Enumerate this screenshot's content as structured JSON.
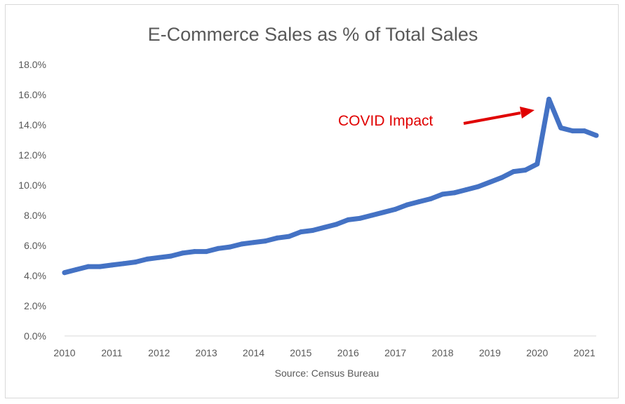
{
  "chart_data": {
    "type": "line",
    "title": "E-Commerce Sales as % of Total Sales",
    "xlabel": "Source: Census Bureau",
    "ylabel": "",
    "ylim": [
      0,
      18
    ],
    "y_ticks": [
      "0.0%",
      "2.0%",
      "4.0%",
      "6.0%",
      "8.0%",
      "10.0%",
      "12.0%",
      "14.0%",
      "16.0%",
      "18.0%"
    ],
    "x_ticks": [
      "2010",
      "2011",
      "2012",
      "2013",
      "2014",
      "2015",
      "2016",
      "2017",
      "2018",
      "2019",
      "2020",
      "2021"
    ],
    "grid": false,
    "legend": "none",
    "line_color": "#4472c4",
    "annotation": {
      "text": "COVID Impact",
      "color": "#e00000",
      "points_to": [
        "2020Q2",
        15.7
      ]
    },
    "series": [
      {
        "x": [
          "2010Q1",
          "2010Q2",
          "2010Q3",
          "2010Q4",
          "2011Q1",
          "2011Q2",
          "2011Q3",
          "2011Q4",
          "2012Q1",
          "2012Q2",
          "2012Q3",
          "2012Q4",
          "2013Q1",
          "2013Q2",
          "2013Q3",
          "2013Q4",
          "2014Q1",
          "2014Q2",
          "2014Q3",
          "2014Q4",
          "2015Q1",
          "2015Q2",
          "2015Q3",
          "2015Q4",
          "2016Q1",
          "2016Q2",
          "2016Q3",
          "2016Q4",
          "2017Q1",
          "2017Q2",
          "2017Q3",
          "2017Q4",
          "2018Q1",
          "2018Q2",
          "2018Q3",
          "2018Q4",
          "2019Q1",
          "2019Q2",
          "2019Q3",
          "2019Q4",
          "2020Q1",
          "2020Q2",
          "2020Q3",
          "2020Q4",
          "2021Q1",
          "2021Q2"
        ],
        "values": [
          4.2,
          4.4,
          4.6,
          4.6,
          4.7,
          4.8,
          4.9,
          5.1,
          5.2,
          5.3,
          5.5,
          5.6,
          5.6,
          5.8,
          5.9,
          6.1,
          6.2,
          6.3,
          6.5,
          6.6,
          6.9,
          7.0,
          7.2,
          7.4,
          7.7,
          7.8,
          8.0,
          8.2,
          8.4,
          8.7,
          8.9,
          9.1,
          9.4,
          9.5,
          9.7,
          9.9,
          10.2,
          10.5,
          10.9,
          11.0,
          11.4,
          15.7,
          13.8,
          13.6,
          13.6,
          13.3
        ]
      }
    ]
  }
}
